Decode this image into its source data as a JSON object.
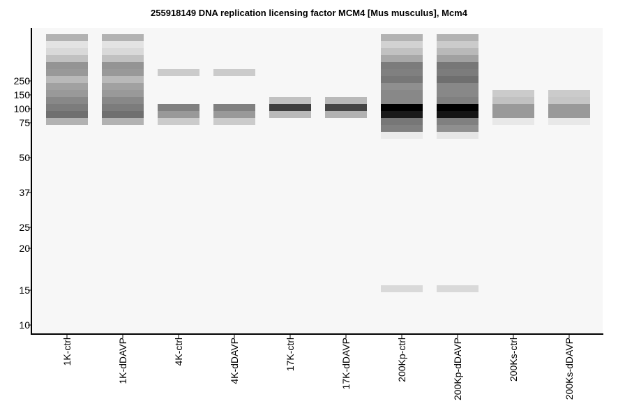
{
  "chart_data": {
    "type": "heatmap",
    "title": "255918149 DNA replication licensing factor MCM4 [Mus musculus], Mcm4",
    "y_tick_labels": [
      "250",
      "150",
      "100",
      "75",
      "50",
      "37",
      "25",
      "20",
      "15",
      "10"
    ],
    "lanes": [
      "1K-ctrl",
      "1K-dDAVP",
      "4K-ctrl",
      "4K-dDAVP",
      "17K-ctrl",
      "17K-dDAVP",
      "200Kp-ctrl",
      "200Kp-dDAVP",
      "200Ks-ctrl",
      "200Ks-dDAVP"
    ],
    "value_scale": "band intensity, 0 = background, 1 = black",
    "bands": [
      [
        0.28,
        0.08,
        0.12,
        0.22,
        0.4,
        0.38,
        0.25,
        0.35,
        0.38,
        0.45,
        0.5,
        0.55,
        0.28
      ],
      [
        0.28,
        0.08,
        0.12,
        0.22,
        0.4,
        0.38,
        0.25,
        0.35,
        0.38,
        0.45,
        0.5,
        0.55,
        0.28
      ],
      [
        0.0,
        0.0,
        0.0,
        0.0,
        0.0,
        0.18,
        0.0,
        0.0,
        0.0,
        0.0,
        0.48,
        0.38,
        0.18
      ],
      [
        0.0,
        0.0,
        0.0,
        0.0,
        0.0,
        0.18,
        0.0,
        0.0,
        0.0,
        0.0,
        0.48,
        0.38,
        0.18
      ],
      [
        0.0,
        0.0,
        0.0,
        0.0,
        0.0,
        0.0,
        0.0,
        0.0,
        0.0,
        0.22,
        0.75,
        0.25,
        0.0
      ],
      [
        0.0,
        0.0,
        0.0,
        0.0,
        0.0,
        0.0,
        0.0,
        0.0,
        0.0,
        0.25,
        0.72,
        0.28,
        0.0
      ],
      [
        0.28,
        0.15,
        0.22,
        0.32,
        0.5,
        0.48,
        0.52,
        0.42,
        0.45,
        0.45,
        1.0,
        0.9,
        0.52,
        0.48,
        0.05,
        0.0,
        0.0,
        0.0,
        0.0,
        0.0,
        0.0,
        0.0,
        0.0,
        0.0,
        0.0,
        0.0,
        0.0,
        0.0,
        0.0,
        0.0,
        0.0,
        0.0,
        0.0,
        0.0,
        0.0,
        0.0,
        0.12
      ],
      [
        0.28,
        0.18,
        0.25,
        0.35,
        0.52,
        0.5,
        0.55,
        0.45,
        0.45,
        0.48,
        1.0,
        0.92,
        0.48,
        0.42,
        0.07,
        0.0,
        0.0,
        0.0,
        0.0,
        0.0,
        0.0,
        0.0,
        0.0,
        0.0,
        0.0,
        0.0,
        0.0,
        0.0,
        0.0,
        0.0,
        0.0,
        0.0,
        0.0,
        0.0,
        0.0,
        0.0,
        0.12
      ],
      [
        0.0,
        0.0,
        0.0,
        0.0,
        0.0,
        0.0,
        0.0,
        0.0,
        0.18,
        0.22,
        0.38,
        0.38,
        0.06
      ],
      [
        0.0,
        0.0,
        0.0,
        0.0,
        0.0,
        0.0,
        0.0,
        0.0,
        0.18,
        0.2,
        0.38,
        0.38,
        0.06
      ]
    ],
    "grid": false,
    "legend": "none"
  }
}
